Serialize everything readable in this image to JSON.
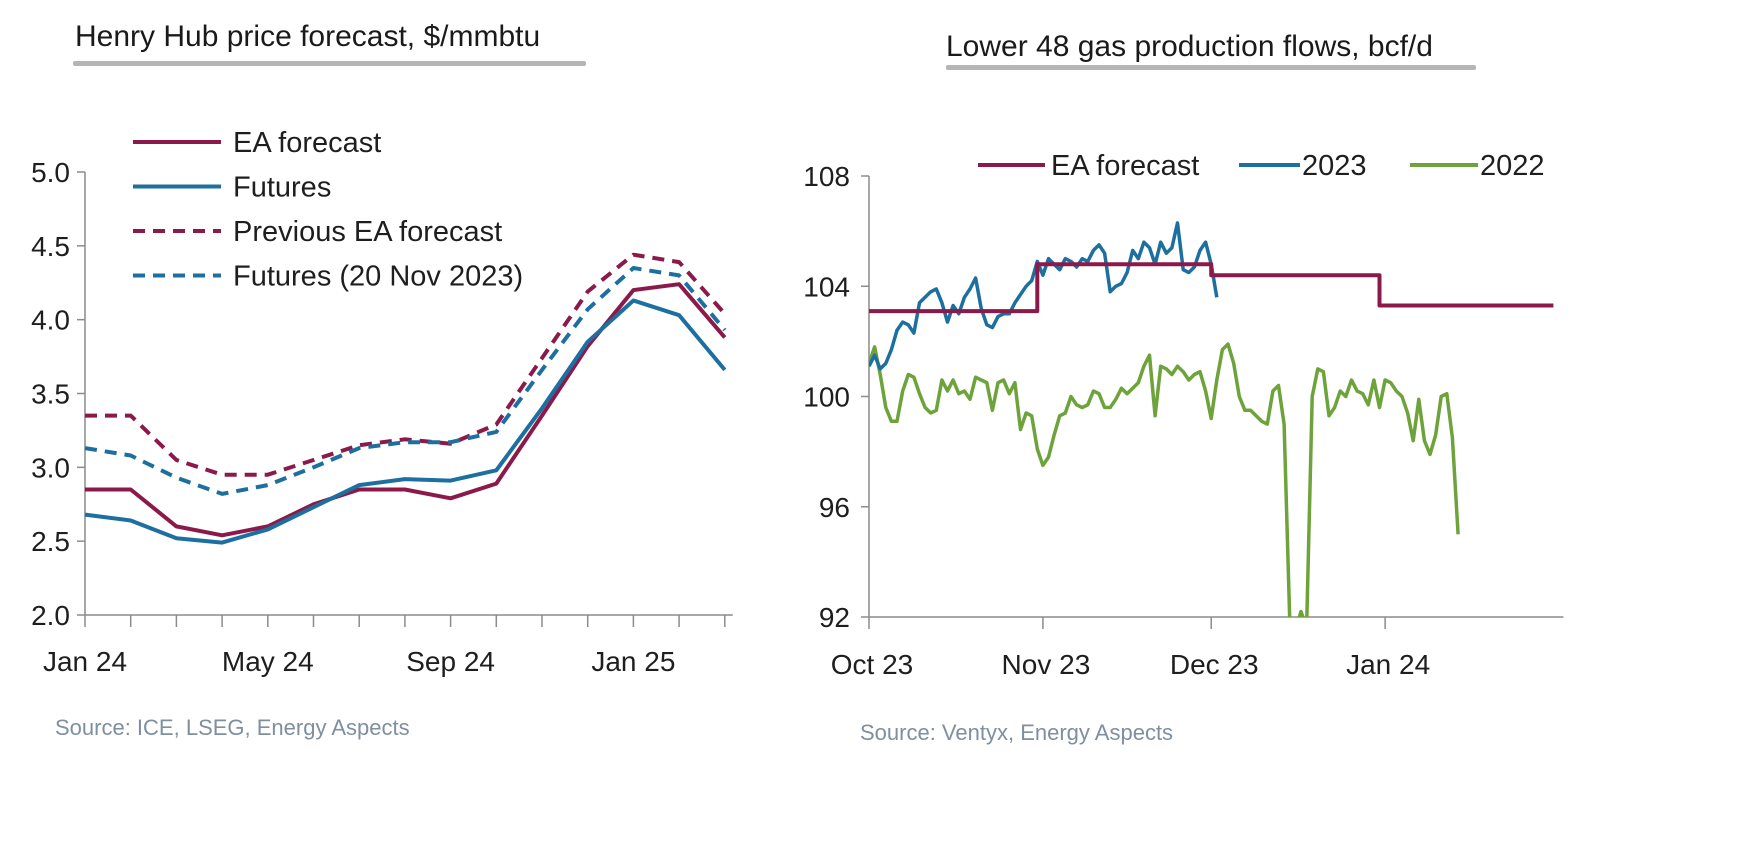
{
  "panels": [
    {
      "title": "Henry Hub price forecast, $/mmbtu",
      "source": "Source: ICE, LSEG, Energy Aspects"
    },
    {
      "title": "Lower 48 gas production flows, bcf/d",
      "source": "Source: Ventyx, Energy Aspects"
    }
  ],
  "colors": {
    "maroon": "#8b1a4a",
    "blue": "#1d6fa0",
    "green": "#6da33a",
    "axis": "#8c8c8c"
  },
  "chart_data": [
    {
      "type": "line",
      "title": "Henry Hub price forecast, $/mmbtu",
      "x": [
        "Jan 24",
        "Feb 24",
        "Mar 24",
        "Apr 24",
        "May 24",
        "Jun 24",
        "Jul 24",
        "Aug 24",
        "Sep 24",
        "Oct 24",
        "Nov 24",
        "Dec 24",
        "Jan 25",
        "Feb 25",
        "Mar 25"
      ],
      "x_tick_labels": [
        "Jan 24",
        "May 24",
        "Sep 24",
        "Jan 25"
      ],
      "ylim": [
        2.0,
        5.0
      ],
      "y_ticks": [
        "2.0",
        "2.5",
        "3.0",
        "3.5",
        "4.0",
        "4.5",
        "5.0"
      ],
      "legend_position": "top-left",
      "series": [
        {
          "name": "EA forecast",
          "style": "solid",
          "color": "maroon",
          "values": [
            2.85,
            2.85,
            2.6,
            2.54,
            2.6,
            2.75,
            2.85,
            2.85,
            2.79,
            2.89,
            3.35,
            3.82,
            4.2,
            4.24,
            3.88
          ]
        },
        {
          "name": "Futures",
          "style": "solid",
          "color": "blue",
          "values": [
            2.68,
            2.64,
            2.52,
            2.49,
            2.58,
            2.73,
            2.88,
            2.92,
            2.91,
            2.98,
            3.4,
            3.85,
            4.13,
            4.03,
            3.66
          ]
        },
        {
          "name": "Previous EA forecast",
          "style": "dashed",
          "color": "maroon",
          "values": [
            3.35,
            3.35,
            3.05,
            2.95,
            2.95,
            3.05,
            3.15,
            3.19,
            3.16,
            3.29,
            3.74,
            4.19,
            4.44,
            4.39,
            4.04
          ]
        },
        {
          "name": "Futures (20 Nov 2023)",
          "style": "dashed",
          "color": "blue",
          "values": [
            3.13,
            3.08,
            2.93,
            2.82,
            2.88,
            3.0,
            3.13,
            3.17,
            3.17,
            3.24,
            3.66,
            4.07,
            4.35,
            4.3,
            3.93
          ]
        }
      ]
    },
    {
      "type": "line",
      "title": "Lower 48 gas production flows, bcf/d",
      "x_unit": "days since Oct 1",
      "x_tick_labels": [
        {
          "label": "Oct 23",
          "day": 0
        },
        {
          "label": "Nov 23",
          "day": 31
        },
        {
          "label": "Dec 23",
          "day": 61
        },
        {
          "label": "Jan 24",
          "day": 92
        }
      ],
      "x_range": [
        0,
        122
      ],
      "ylim": [
        92,
        108
      ],
      "y_ticks": [
        "92",
        "96",
        "100",
        "104",
        "108"
      ],
      "legend_position": "top",
      "series": [
        {
          "name": "EA forecast",
          "color": "maroon",
          "points": [
            [
              0,
              103.1
            ],
            [
              30,
              103.1
            ],
            [
              30,
              104.8
            ],
            [
              61,
              104.8
            ],
            [
              61,
              104.4
            ],
            [
              91,
              104.4
            ],
            [
              91,
              103.3
            ],
            [
              122,
              103.3
            ]
          ]
        },
        {
          "name": "2023",
          "color": "blue",
          "points": [
            [
              0,
              101.1
            ],
            [
              1,
              101.5
            ],
            [
              2,
              101.0
            ],
            [
              3,
              101.2
            ],
            [
              4,
              101.7
            ],
            [
              5,
              102.4
            ],
            [
              6,
              102.7
            ],
            [
              7,
              102.6
            ],
            [
              8,
              102.3
            ],
            [
              9,
              103.4
            ],
            [
              10,
              103.6
            ],
            [
              11,
              103.8
            ],
            [
              12,
              103.9
            ],
            [
              13,
              103.4
            ],
            [
              14,
              102.7
            ],
            [
              15,
              103.3
            ],
            [
              16,
              103.0
            ],
            [
              17,
              103.6
            ],
            [
              18,
              103.9
            ],
            [
              19,
              104.3
            ],
            [
              20,
              103.2
            ],
            [
              21,
              102.6
            ],
            [
              22,
              102.5
            ],
            [
              23,
              102.9
            ],
            [
              24,
              103.0
            ],
            [
              25,
              103.0
            ],
            [
              26,
              103.4
            ],
            [
              27,
              103.7
            ],
            [
              28,
              104.0
            ],
            [
              29,
              104.2
            ],
            [
              30,
              104.9
            ],
            [
              31,
              104.4
            ],
            [
              32,
              105.0
            ],
            [
              33,
              104.8
            ],
            [
              34,
              104.6
            ],
            [
              35,
              105.0
            ],
            [
              36,
              104.9
            ],
            [
              37,
              104.7
            ],
            [
              38,
              105.0
            ],
            [
              39,
              104.9
            ],
            [
              40,
              105.3
            ],
            [
              41,
              105.5
            ],
            [
              42,
              105.2
            ],
            [
              43,
              103.8
            ],
            [
              44,
              104.0
            ],
            [
              45,
              104.1
            ],
            [
              46,
              104.5
            ],
            [
              47,
              105.3
            ],
            [
              48,
              105.0
            ],
            [
              49,
              105.6
            ],
            [
              50,
              105.4
            ],
            [
              51,
              104.8
            ],
            [
              52,
              105.6
            ],
            [
              53,
              105.2
            ],
            [
              54,
              105.4
            ],
            [
              55,
              106.3
            ],
            [
              56,
              104.6
            ],
            [
              57,
              104.5
            ],
            [
              58,
              104.7
            ],
            [
              59,
              105.3
            ],
            [
              60,
              105.6
            ],
            [
              61,
              104.8
            ],
            [
              62,
              103.6
            ]
          ]
        },
        {
          "name": "2022",
          "color": "green",
          "points": [
            [
              0,
              101.2
            ],
            [
              1,
              101.8
            ],
            [
              2,
              100.8
            ],
            [
              3,
              99.6
            ],
            [
              4,
              99.1
            ],
            [
              5,
              99.1
            ],
            [
              6,
              100.2
            ],
            [
              7,
              100.8
            ],
            [
              8,
              100.7
            ],
            [
              9,
              100.1
            ],
            [
              10,
              99.6
            ],
            [
              11,
              99.4
            ],
            [
              12,
              99.5
            ],
            [
              13,
              100.6
            ],
            [
              14,
              100.2
            ],
            [
              15,
              100.6
            ],
            [
              16,
              100.1
            ],
            [
              17,
              100.2
            ],
            [
              18,
              99.9
            ],
            [
              19,
              100.7
            ],
            [
              20,
              100.6
            ],
            [
              21,
              100.5
            ],
            [
              22,
              99.5
            ],
            [
              23,
              100.5
            ],
            [
              24,
              100.6
            ],
            [
              25,
              100.1
            ],
            [
              26,
              100.5
            ],
            [
              27,
              98.8
            ],
            [
              28,
              99.4
            ],
            [
              29,
              99.3
            ],
            [
              30,
              98.1
            ],
            [
              31,
              97.5
            ],
            [
              32,
              97.8
            ],
            [
              33,
              98.6
            ],
            [
              34,
              99.3
            ],
            [
              35,
              99.4
            ],
            [
              36,
              100.0
            ],
            [
              37,
              99.7
            ],
            [
              38,
              99.6
            ],
            [
              39,
              99.7
            ],
            [
              40,
              100.2
            ],
            [
              41,
              100.1
            ],
            [
              42,
              99.6
            ],
            [
              43,
              99.6
            ],
            [
              44,
              99.9
            ],
            [
              45,
              100.3
            ],
            [
              46,
              100.1
            ],
            [
              47,
              100.3
            ],
            [
              48,
              100.5
            ],
            [
              49,
              101.1
            ],
            [
              50,
              101.5
            ],
            [
              51,
              99.3
            ],
            [
              52,
              101.1
            ],
            [
              53,
              101.0
            ],
            [
              54,
              100.8
            ],
            [
              55,
              101.1
            ],
            [
              56,
              100.9
            ],
            [
              57,
              100.6
            ],
            [
              58,
              100.8
            ],
            [
              59,
              100.9
            ],
            [
              60,
              100.2
            ],
            [
              61,
              99.2
            ],
            [
              62,
              100.6
            ],
            [
              63,
              101.7
            ],
            [
              64,
              101.9
            ],
            [
              65,
              101.2
            ],
            [
              66,
              100.0
            ],
            [
              67,
              99.5
            ],
            [
              68,
              99.5
            ],
            [
              69,
              99.3
            ],
            [
              70,
              99.1
            ],
            [
              71,
              99.0
            ],
            [
              72,
              100.2
            ],
            [
              73,
              100.4
            ],
            [
              74,
              99.0
            ],
            [
              75,
              91.8
            ],
            [
              76,
              91.5
            ],
            [
              77,
              92.2
            ],
            [
              78,
              91.6
            ],
            [
              79,
              100.0
            ],
            [
              80,
              101.0
            ],
            [
              81,
              100.9
            ],
            [
              82,
              99.3
            ],
            [
              83,
              99.6
            ],
            [
              84,
              100.2
            ],
            [
              85,
              100.0
            ],
            [
              86,
              100.6
            ],
            [
              87,
              100.2
            ],
            [
              88,
              100.1
            ],
            [
              89,
              99.7
            ],
            [
              90,
              100.6
            ],
            [
              91,
              99.6
            ],
            [
              92,
              100.6
            ],
            [
              93,
              100.5
            ],
            [
              94,
              100.2
            ],
            [
              95,
              100.0
            ],
            [
              96,
              99.4
            ],
            [
              97,
              98.4
            ],
            [
              98,
              99.9
            ],
            [
              99,
              98.4
            ],
            [
              100,
              97.9
            ],
            [
              101,
              98.6
            ],
            [
              102,
              100.0
            ],
            [
              103,
              100.1
            ],
            [
              104,
              98.5
            ],
            [
              105,
              95.0
            ]
          ]
        }
      ]
    }
  ]
}
